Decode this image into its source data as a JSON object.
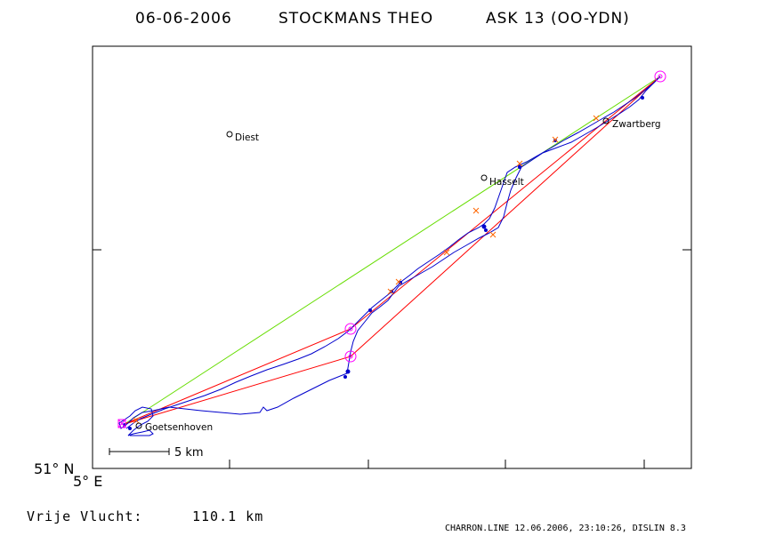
{
  "header": {
    "date": "06-06-2006",
    "pilot": "STOCKMANS THEO",
    "glider": "ASK 13 (OO-YDN)"
  },
  "axes": {
    "lat_label": "51° N",
    "lon_label": "5° E"
  },
  "scale": {
    "label": "5 km"
  },
  "result": {
    "label": "Vrije Vlucht:",
    "value": "110.1 km"
  },
  "footer": "CHARRON.LINE 12.06.2006, 23:10:26, DISLIN 8.3",
  "colors": {
    "track": "#0000cc",
    "task": "#ff0000",
    "direct": "#66dd00",
    "turnpoint": "#ff00ff",
    "fix": "#ff6600"
  },
  "chart_data": {
    "type": "map",
    "places": [
      {
        "name": "Diest"
      },
      {
        "name": "Hasselt"
      },
      {
        "name": "Zwartberg"
      },
      {
        "name": "Goetsenhoven"
      }
    ],
    "turnpoints": [
      "start",
      "tp1",
      "tp2",
      "tp3"
    ]
  }
}
